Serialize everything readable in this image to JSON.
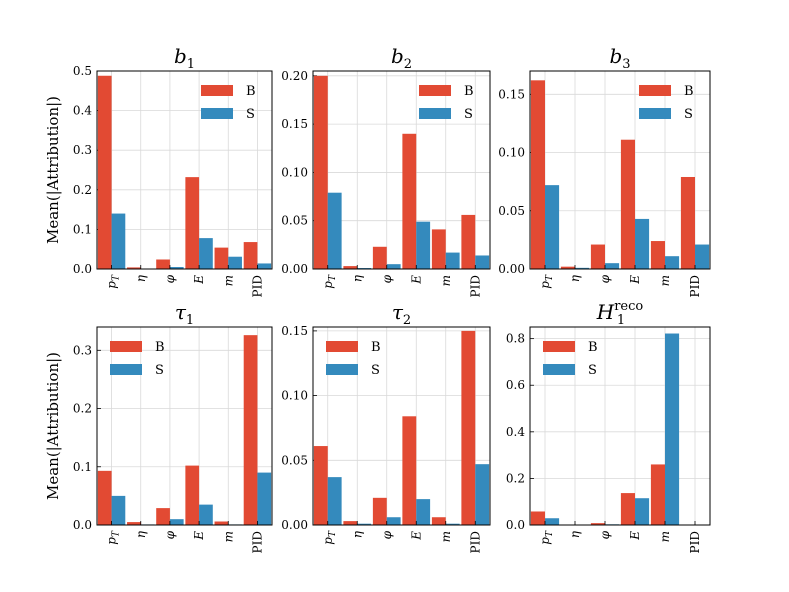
{
  "colors": {
    "B": "#e24a33",
    "S": "#348abd"
  },
  "ylabel": "Mean(|Attribution|)",
  "chart_data": [
    {
      "type": "bar",
      "title": "b1",
      "categories": [
        "pT",
        "η",
        "φ",
        "E",
        "m",
        "PID"
      ],
      "ylim": [
        0,
        0.5
      ],
      "yticks": [
        "0.0",
        "0.1",
        "0.2",
        "0.3",
        "0.4",
        "0.5"
      ],
      "legend": "top-right",
      "series": [
        {
          "name": "B",
          "values": [
            0.488,
            0.004,
            0.024,
            0.232,
            0.054,
            0.068
          ]
        },
        {
          "name": "S",
          "values": [
            0.14,
            0.001,
            0.005,
            0.078,
            0.031,
            0.014
          ]
        }
      ]
    },
    {
      "type": "bar",
      "title": "b2",
      "categories": [
        "pT",
        "η",
        "φ",
        "E",
        "m",
        "PID"
      ],
      "ylim": [
        0,
        0.205
      ],
      "yticks": [
        "0.00",
        "0.05",
        "0.10",
        "0.15",
        "0.20"
      ],
      "legend": "top-right",
      "series": [
        {
          "name": "B",
          "values": [
            0.2,
            0.003,
            0.023,
            0.14,
            0.041,
            0.056
          ]
        },
        {
          "name": "S",
          "values": [
            0.079,
            0.001,
            0.005,
            0.049,
            0.017,
            0.014
          ]
        }
      ]
    },
    {
      "type": "bar",
      "title": "b3",
      "categories": [
        "pT",
        "η",
        "φ",
        "E",
        "m",
        "PID"
      ],
      "ylim": [
        0,
        0.17
      ],
      "yticks": [
        "0.00",
        "0.05",
        "0.10",
        "0.15"
      ],
      "legend": "top-right",
      "series": [
        {
          "name": "B",
          "values": [
            0.162,
            0.002,
            0.021,
            0.111,
            0.024,
            0.079
          ]
        },
        {
          "name": "S",
          "values": [
            0.072,
            0.001,
            0.005,
            0.043,
            0.011,
            0.021
          ]
        }
      ]
    },
    {
      "type": "bar",
      "title": "τ1",
      "categories": [
        "pT",
        "η",
        "φ",
        "E",
        "m",
        "PID"
      ],
      "ylim": [
        0,
        0.34
      ],
      "yticks": [
        "0.0",
        "0.1",
        "0.2",
        "0.3"
      ],
      "legend": "top-left",
      "series": [
        {
          "name": "B",
          "values": [
            0.093,
            0.005,
            0.029,
            0.102,
            0.006,
            0.326
          ]
        },
        {
          "name": "S",
          "values": [
            0.05,
            0.001,
            0.01,
            0.035,
            0.001,
            0.09
          ]
        }
      ]
    },
    {
      "type": "bar",
      "title": "τ2",
      "categories": [
        "pT",
        "η",
        "φ",
        "E",
        "m",
        "PID"
      ],
      "ylim": [
        0,
        0.153
      ],
      "yticks": [
        "0.00",
        "0.05",
        "0.10",
        "0.15"
      ],
      "legend": "top-left",
      "series": [
        {
          "name": "B",
          "values": [
            0.061,
            0.003,
            0.021,
            0.084,
            0.006,
            0.15
          ]
        },
        {
          "name": "S",
          "values": [
            0.037,
            0.001,
            0.006,
            0.02,
            0.001,
            0.047
          ]
        }
      ]
    },
    {
      "type": "bar",
      "title": "H1",
      "title_sup": "reco",
      "categories": [
        "pT",
        "η",
        "φ",
        "E",
        "m",
        "PID"
      ],
      "ylim": [
        0,
        0.85
      ],
      "yticks": [
        "0.0",
        "0.2",
        "0.4",
        "0.6",
        "0.8"
      ],
      "legend": "top-left",
      "series": [
        {
          "name": "B",
          "values": [
            0.058,
            0.001,
            0.008,
            0.137,
            0.26,
            0.001
          ]
        },
        {
          "name": "S",
          "values": [
            0.029,
            0.001,
            0.003,
            0.115,
            0.822,
            0.001
          ]
        }
      ]
    }
  ]
}
